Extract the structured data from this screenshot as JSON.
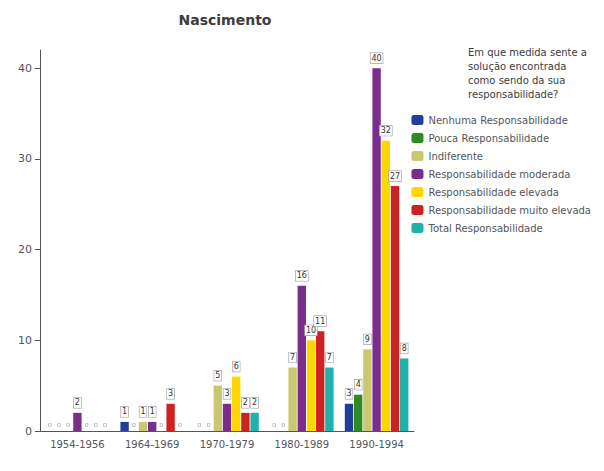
{
  "chart_data": {
    "type": "bar",
    "title": "Nascimento",
    "categories": [
      "1954-1956",
      "1964-1969",
      "1970-1979",
      "1980-1989",
      "1990-1994"
    ],
    "series": [
      {
        "name": "Nenhuma Responsabilidade",
        "color": "#1F3F99",
        "values": [
          0,
          1,
          0,
          0,
          3
        ]
      },
      {
        "name": "Pouca Responsabilidade",
        "color": "#2E8B22",
        "values": [
          0,
          0,
          0,
          0,
          4
        ]
      },
      {
        "name": "Indiferente",
        "color": "#C8C870",
        "values": [
          0,
          1,
          5,
          7,
          9
        ]
      },
      {
        "name": "Responsabilidade moderada",
        "color": "#7B2D8B",
        "values": [
          2,
          1,
          3,
          16,
          40
        ]
      },
      {
        "name": "Responsabilidade elevada",
        "color": "#FFD700",
        "values": [
          0,
          0,
          6,
          10,
          32
        ]
      },
      {
        "name": "Responsabilidade muito elevada",
        "color": "#CC2222",
        "values": [
          0,
          3,
          2,
          11,
          27
        ]
      },
      {
        "name": "Total Responsabilidade",
        "color": "#20B2AA",
        "values": [
          0,
          0,
          2,
          7,
          8
        ]
      }
    ],
    "legend_title": "Em que medida sente a\nsolução encontrada\ncomo sendo da sua\nresponsabilidade?",
    "legend": "right",
    "ylim": [
      0,
      42
    ],
    "yticks": [
      0,
      10,
      20,
      30,
      40
    ],
    "grid": false,
    "data_labels": true
  }
}
